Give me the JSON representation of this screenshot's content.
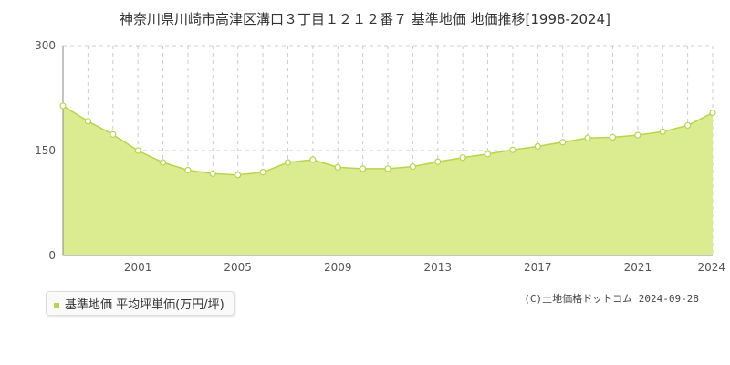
{
  "title": "神奈川県川崎市高津区溝口３丁目１２１２番７ 基準地価 地価推移[1998-2024]",
  "legend": {
    "label": "基準地価 平均坪単価(万円/坪)"
  },
  "copyright": "(C)土地価格ドットコム 2024-09-28",
  "colors": {
    "fill": "#dbeb8f",
    "line": "#b5d64a",
    "marker_fill": "#ffffff",
    "marker_stroke": "#b5d64a",
    "grid": "#cccccc"
  },
  "chart_data": {
    "type": "area",
    "title": "神奈川県川崎市高津区溝口３丁目１２１２番７ 基準地価 地価推移[1998-2024]",
    "xlabel": "",
    "ylabel": "",
    "xlim": [
      1998,
      2024
    ],
    "ylim": [
      0,
      300
    ],
    "y_ticks": [
      0,
      150,
      300
    ],
    "x_tick_labels": [
      "2001",
      "2005",
      "2009",
      "2013",
      "2017",
      "2021",
      "2024"
    ],
    "x": [
      1998,
      1999,
      2000,
      2001,
      2002,
      2003,
      2004,
      2005,
      2006,
      2007,
      2008,
      2009,
      2010,
      2011,
      2012,
      2013,
      2014,
      2015,
      2016,
      2017,
      2018,
      2019,
      2020,
      2021,
      2022,
      2023,
      2024
    ],
    "series": [
      {
        "name": "基準地価 平均坪単価(万円/坪)",
        "values": [
          214,
          192,
          173,
          150,
          133,
          122,
          117,
          115,
          119,
          133,
          137,
          126,
          124,
          124,
          127,
          134,
          140,
          145,
          151,
          156,
          162,
          168,
          169,
          172,
          177,
          186,
          204
        ]
      }
    ],
    "grid": {
      "vertical": true,
      "horizontal_dashed": true
    },
    "legend_position": "bottom-left"
  }
}
